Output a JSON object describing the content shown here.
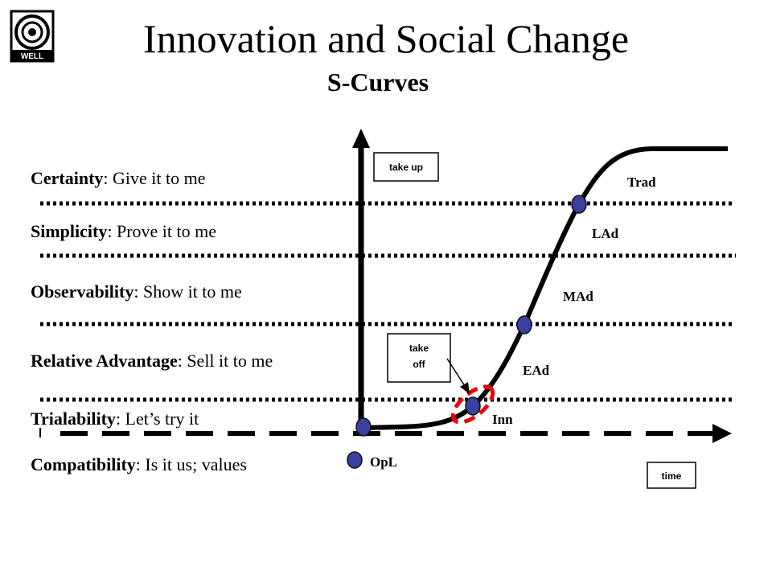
{
  "header": {
    "logo": "WELL",
    "title": "Innovation and Social Change",
    "subtitle": "S-Curves"
  },
  "attributes": [
    {
      "name": "Certainty",
      "text": ": Give it to me"
    },
    {
      "name": "Simplicity",
      "text": ": Prove it to me"
    },
    {
      "name": "Observability",
      "text": ": Show it to me"
    },
    {
      "name": "Relative Advantage",
      "text": ": Sell it to me"
    },
    {
      "name": "Trialability",
      "text": ": Let’s try it"
    },
    {
      "name": "Compatibility",
      "text": ": Is it us; values"
    }
  ],
  "curve_labels": [
    "Trad",
    "LAd",
    "MAd",
    "EAd",
    "Inn",
    "OpL"
  ],
  "boxes": {
    "y_axis": "take up",
    "take_off": [
      "take",
      "off"
    ],
    "x_axis": "time"
  }
}
